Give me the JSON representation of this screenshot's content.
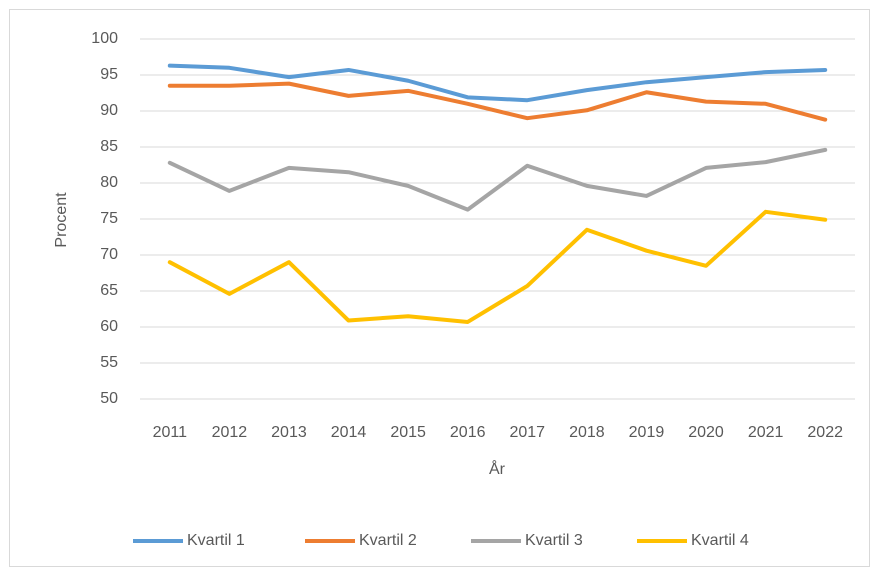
{
  "chart_data": {
    "type": "line",
    "x_label": "År",
    "y_label": "Procent",
    "categories": [
      "2011",
      "2012",
      "2013",
      "2014",
      "2015",
      "2016",
      "2017",
      "2018",
      "2019",
      "2020",
      "2021",
      "2022"
    ],
    "series": [
      {
        "name": "Kvartil 1",
        "color": "#5b9bd5",
        "values": [
          96.3,
          96,
          94.7,
          95.7,
          94.2,
          91.9,
          91.5,
          92.9,
          94,
          94.7,
          95.4,
          95.7
        ]
      },
      {
        "name": "Kvartil 2",
        "color": "#ed7d31",
        "values": [
          93.5,
          93.5,
          93.8,
          92.1,
          92.8,
          91,
          89,
          90.1,
          92.6,
          91.3,
          91,
          88.8
        ]
      },
      {
        "name": "Kvartil 3",
        "color": "#a5a5a5",
        "values": [
          82.8,
          78.9,
          82.1,
          81.5,
          79.6,
          76.3,
          82.4,
          79.6,
          78.2,
          82.1,
          82.9,
          84.6
        ]
      },
      {
        "name": "Kvartil 4",
        "color": "#ffc000",
        "values": [
          69,
          64.6,
          69,
          60.9,
          61.5,
          60.7,
          65.7,
          73.5,
          70.6,
          68.5,
          76,
          74.9
        ]
      }
    ],
    "ylim": [
      50,
      100
    ],
    "yticks": [
      50,
      55,
      60,
      65,
      70,
      75,
      80,
      85,
      90,
      95,
      100
    ],
    "grid": true,
    "legend": "bottom"
  }
}
